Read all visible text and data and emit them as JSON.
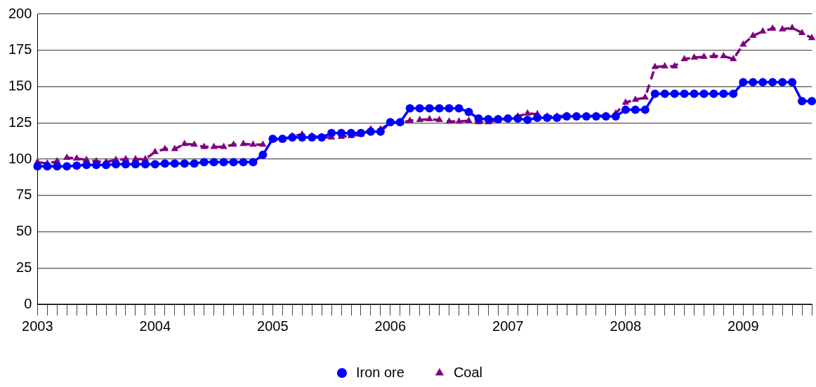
{
  "chart_data": {
    "type": "line",
    "categories": [
      "2003",
      null,
      null,
      null,
      null,
      null,
      null,
      null,
      null,
      null,
      null,
      null,
      "2004",
      null,
      null,
      null,
      null,
      null,
      null,
      null,
      null,
      null,
      null,
      null,
      "2005",
      null,
      null,
      null,
      null,
      null,
      null,
      null,
      null,
      null,
      null,
      null,
      "2006",
      null,
      null,
      null,
      null,
      null,
      null,
      null,
      null,
      null,
      null,
      null,
      "2007",
      null,
      null,
      null,
      null,
      null,
      null,
      null,
      null,
      null,
      null,
      null,
      "2008",
      null,
      null,
      null,
      null,
      null,
      null,
      null,
      null,
      null,
      null,
      null,
      "2009",
      null,
      null,
      null,
      null,
      null,
      null,
      null
    ],
    "series": [
      {
        "name": "Iron ore",
        "color": "#0000ff",
        "marker": "circle",
        "line_style": "solid",
        "values": [
          95,
          95,
          95,
          95,
          95.5,
          96,
          96,
          96,
          96.5,
          96.5,
          96.5,
          96.5,
          96.5,
          97,
          97,
          97,
          97,
          98,
          98,
          98,
          98,
          98,
          98,
          103,
          114,
          114,
          115,
          115,
          115,
          115,
          118,
          118,
          118,
          118,
          119,
          119,
          125.5,
          125.5,
          135,
          135,
          135,
          135,
          135,
          135,
          132.5,
          128,
          127.5,
          127.5,
          128,
          128,
          127,
          128.5,
          128.5,
          128.5,
          129.5,
          129.5,
          129.5,
          129.5,
          129.5,
          129.5,
          134,
          134,
          134,
          145,
          145,
          145,
          145,
          145,
          145,
          145,
          145,
          145,
          153,
          153,
          153,
          153,
          153,
          153,
          140,
          140
        ]
      },
      {
        "name": "Coal",
        "color": "#800080",
        "marker": "triangle",
        "line_style": "dashed",
        "values": [
          98,
          97,
          98.5,
          101,
          100.5,
          99.5,
          98.5,
          98,
          99.5,
          100,
          100,
          100,
          105,
          107,
          107,
          110.5,
          110,
          108.5,
          108.5,
          108.5,
          110,
          110.5,
          110,
          110,
          113,
          113.5,
          116,
          117,
          116,
          115,
          115,
          115.5,
          116,
          117,
          120.5,
          120.5,
          125,
          125,
          126.5,
          127,
          127.5,
          127,
          126,
          126,
          126.5,
          125.5,
          125.5,
          127,
          127.5,
          129.5,
          131.5,
          131,
          129.5,
          129.5,
          130,
          129.5,
          129.5,
          130,
          130,
          131.5,
          139,
          141,
          142.5,
          163.5,
          164,
          164,
          169,
          170,
          170.5,
          171,
          171,
          169,
          179,
          185,
          188,
          190,
          189.5,
          190.5,
          187,
          183.5
        ]
      }
    ],
    "ylim": [
      0,
      200
    ],
    "yticks": [
      0,
      25,
      50,
      75,
      100,
      125,
      150,
      175,
      200
    ],
    "grid": "y",
    "legend": "bottom"
  }
}
